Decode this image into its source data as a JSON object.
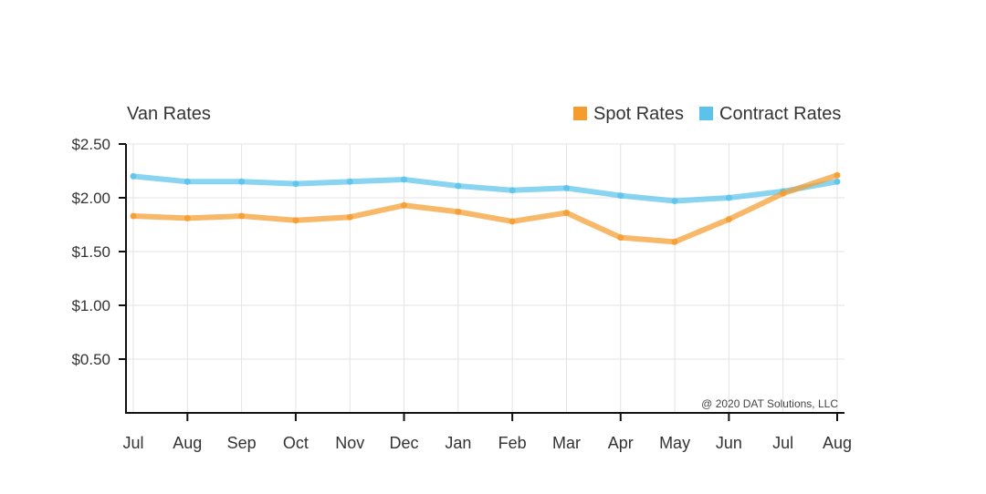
{
  "chart_data": {
    "type": "line",
    "title": "Van Rates",
    "xlabel": "",
    "ylabel": "",
    "categories": [
      "Jul",
      "Aug",
      "Sep",
      "Oct",
      "Nov",
      "Dec",
      "Jan",
      "Feb",
      "Mar",
      "Apr",
      "May",
      "Jun",
      "Jul",
      "Aug"
    ],
    "series": [
      {
        "name": "Spot Rates",
        "color": "#F59C2F",
        "values": [
          1.83,
          1.81,
          1.83,
          1.79,
          1.82,
          1.93,
          1.87,
          1.78,
          1.86,
          1.63,
          1.59,
          1.8,
          2.04,
          2.21
        ]
      },
      {
        "name": "Contract Rates",
        "color": "#5BC3EA",
        "values": [
          2.2,
          2.15,
          2.15,
          2.13,
          2.15,
          2.17,
          2.11,
          2.07,
          2.09,
          2.02,
          1.97,
          2.0,
          2.06,
          2.15
        ]
      }
    ],
    "ylim": [
      0,
      2.5
    ],
    "yticks": [
      0.5,
      1.0,
      1.5,
      2.0,
      2.5
    ],
    "ytick_labels": [
      "$0.50",
      "$1.00",
      "$1.50",
      "$2.00",
      "$2.50"
    ],
    "xtick_marks_every": 2,
    "grid": true,
    "legend_position": "top-right",
    "annotation": "@ 2020 DAT Solutions, LLC"
  }
}
